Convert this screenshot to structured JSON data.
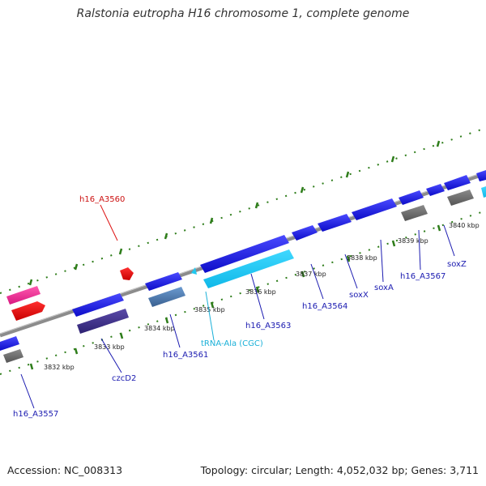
{
  "title": "Ralstonia eutropha H16 chromosome 1, complete genome",
  "footer": {
    "accession": "Accession: NC_008313",
    "summary": "Topology: circular; Length: 4,052,032 bp; Genes: 3,711"
  },
  "colors": {
    "backbone": "#8c8c8c",
    "tick": "#2e7d1a",
    "gene_blue": "#1a1aee",
    "trna": "#1ec8f0",
    "red_label": "#dd1111",
    "gene_label": "#1a1ab0"
  },
  "kbp_labels": [
    "3832 kbp",
    "3833 kbp",
    "3834 kbp",
    "3835 kbp",
    "3836 kbp",
    "3837 kbp",
    "3838 kbp",
    "3839 kbp",
    "3840 kbp"
  ],
  "gene_labels": [
    {
      "id": "h16_A3560",
      "text": "h16_A3560",
      "color": "#cc1111"
    },
    {
      "id": "h16_A3557",
      "text": "h16_A3557",
      "color": "#1a1ab0"
    },
    {
      "id": "czcD2",
      "text": "czcD2",
      "color": "#1a1ab0"
    },
    {
      "id": "h16_A3561",
      "text": "h16_A3561",
      "color": "#1a1ab0"
    },
    {
      "id": "trna",
      "text": "tRNA-Ala (CGC)",
      "color": "#1ab0d8"
    },
    {
      "id": "h16_A3563",
      "text": "h16_A3563",
      "color": "#1a1ab0"
    },
    {
      "id": "h16_A3564",
      "text": "h16_A3564",
      "color": "#1a1ab0"
    },
    {
      "id": "soxX",
      "text": "soxX",
      "color": "#1a1ab0"
    },
    {
      "id": "soxA",
      "text": "soxA",
      "color": "#1a1ab0"
    },
    {
      "id": "h16_A3567",
      "text": "h16_A3567",
      "color": "#1a1ab0"
    },
    {
      "id": "soxZ",
      "text": "soxZ",
      "color": "#1a1ab0"
    }
  ]
}
